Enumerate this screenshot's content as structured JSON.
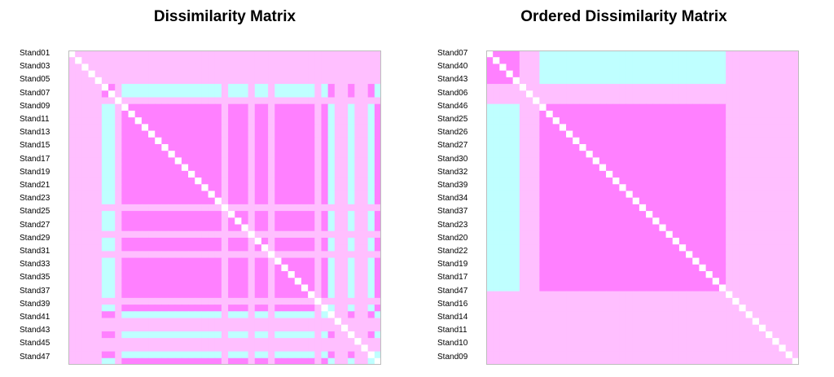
{
  "colors": {
    "high": "#ff80ff",
    "mid": "#ffbfff",
    "low": "#bfffff",
    "diag": "#ffffff"
  },
  "chart_data": [
    {
      "type": "heatmap",
      "title": "Dissimilarity Matrix",
      "row_labels": [
        "Stand01",
        "Stand03",
        "Stand05",
        "Stand07",
        "Stand09",
        "Stand11",
        "Stand13",
        "Stand15",
        "Stand17",
        "Stand19",
        "Stand21",
        "Stand23",
        "Stand25",
        "Stand27",
        "Stand29",
        "Stand31",
        "Stand33",
        "Stand35",
        "Stand37",
        "Stand39",
        "Stand41",
        "Stand43",
        "Stand45",
        "Stand47"
      ],
      "n": 47,
      "order": [
        0,
        1,
        2,
        3,
        4,
        5,
        6,
        7,
        8,
        9,
        10,
        11,
        12,
        13,
        14,
        15,
        16,
        17,
        18,
        19,
        20,
        21,
        22,
        23,
        24,
        25,
        26,
        27,
        28,
        29,
        30,
        31,
        32,
        33,
        34,
        35,
        36,
        37,
        38,
        39,
        40,
        41,
        42,
        43,
        44,
        45,
        46
      ]
    },
    {
      "type": "heatmap",
      "title": "Ordered Dissimilarity Matrix",
      "row_labels": [
        "Stand07",
        "Stand40",
        "Stand43",
        "Stand06",
        "Stand46",
        "Stand25",
        "Stand26",
        "Stand27",
        "Stand30",
        "Stand32",
        "Stand39",
        "Stand34",
        "Stand37",
        "Stand23",
        "Stand20",
        "Stand22",
        "Stand19",
        "Stand17",
        "Stand47",
        "Stand16",
        "Stand14",
        "Stand11",
        "Stand10",
        "Stand09"
      ],
      "n": 47,
      "order": [
        6,
        39,
        42,
        5,
        45,
        1,
        3,
        44,
        24,
        25,
        26,
        28,
        29,
        31,
        38,
        32,
        34,
        35,
        36,
        33,
        22,
        21,
        19,
        20,
        18,
        17,
        16,
        46,
        15,
        13,
        14,
        12,
        11,
        10,
        9,
        8,
        2,
        4,
        0,
        7,
        23,
        27,
        30,
        37,
        40,
        41,
        43
      ]
    }
  ]
}
